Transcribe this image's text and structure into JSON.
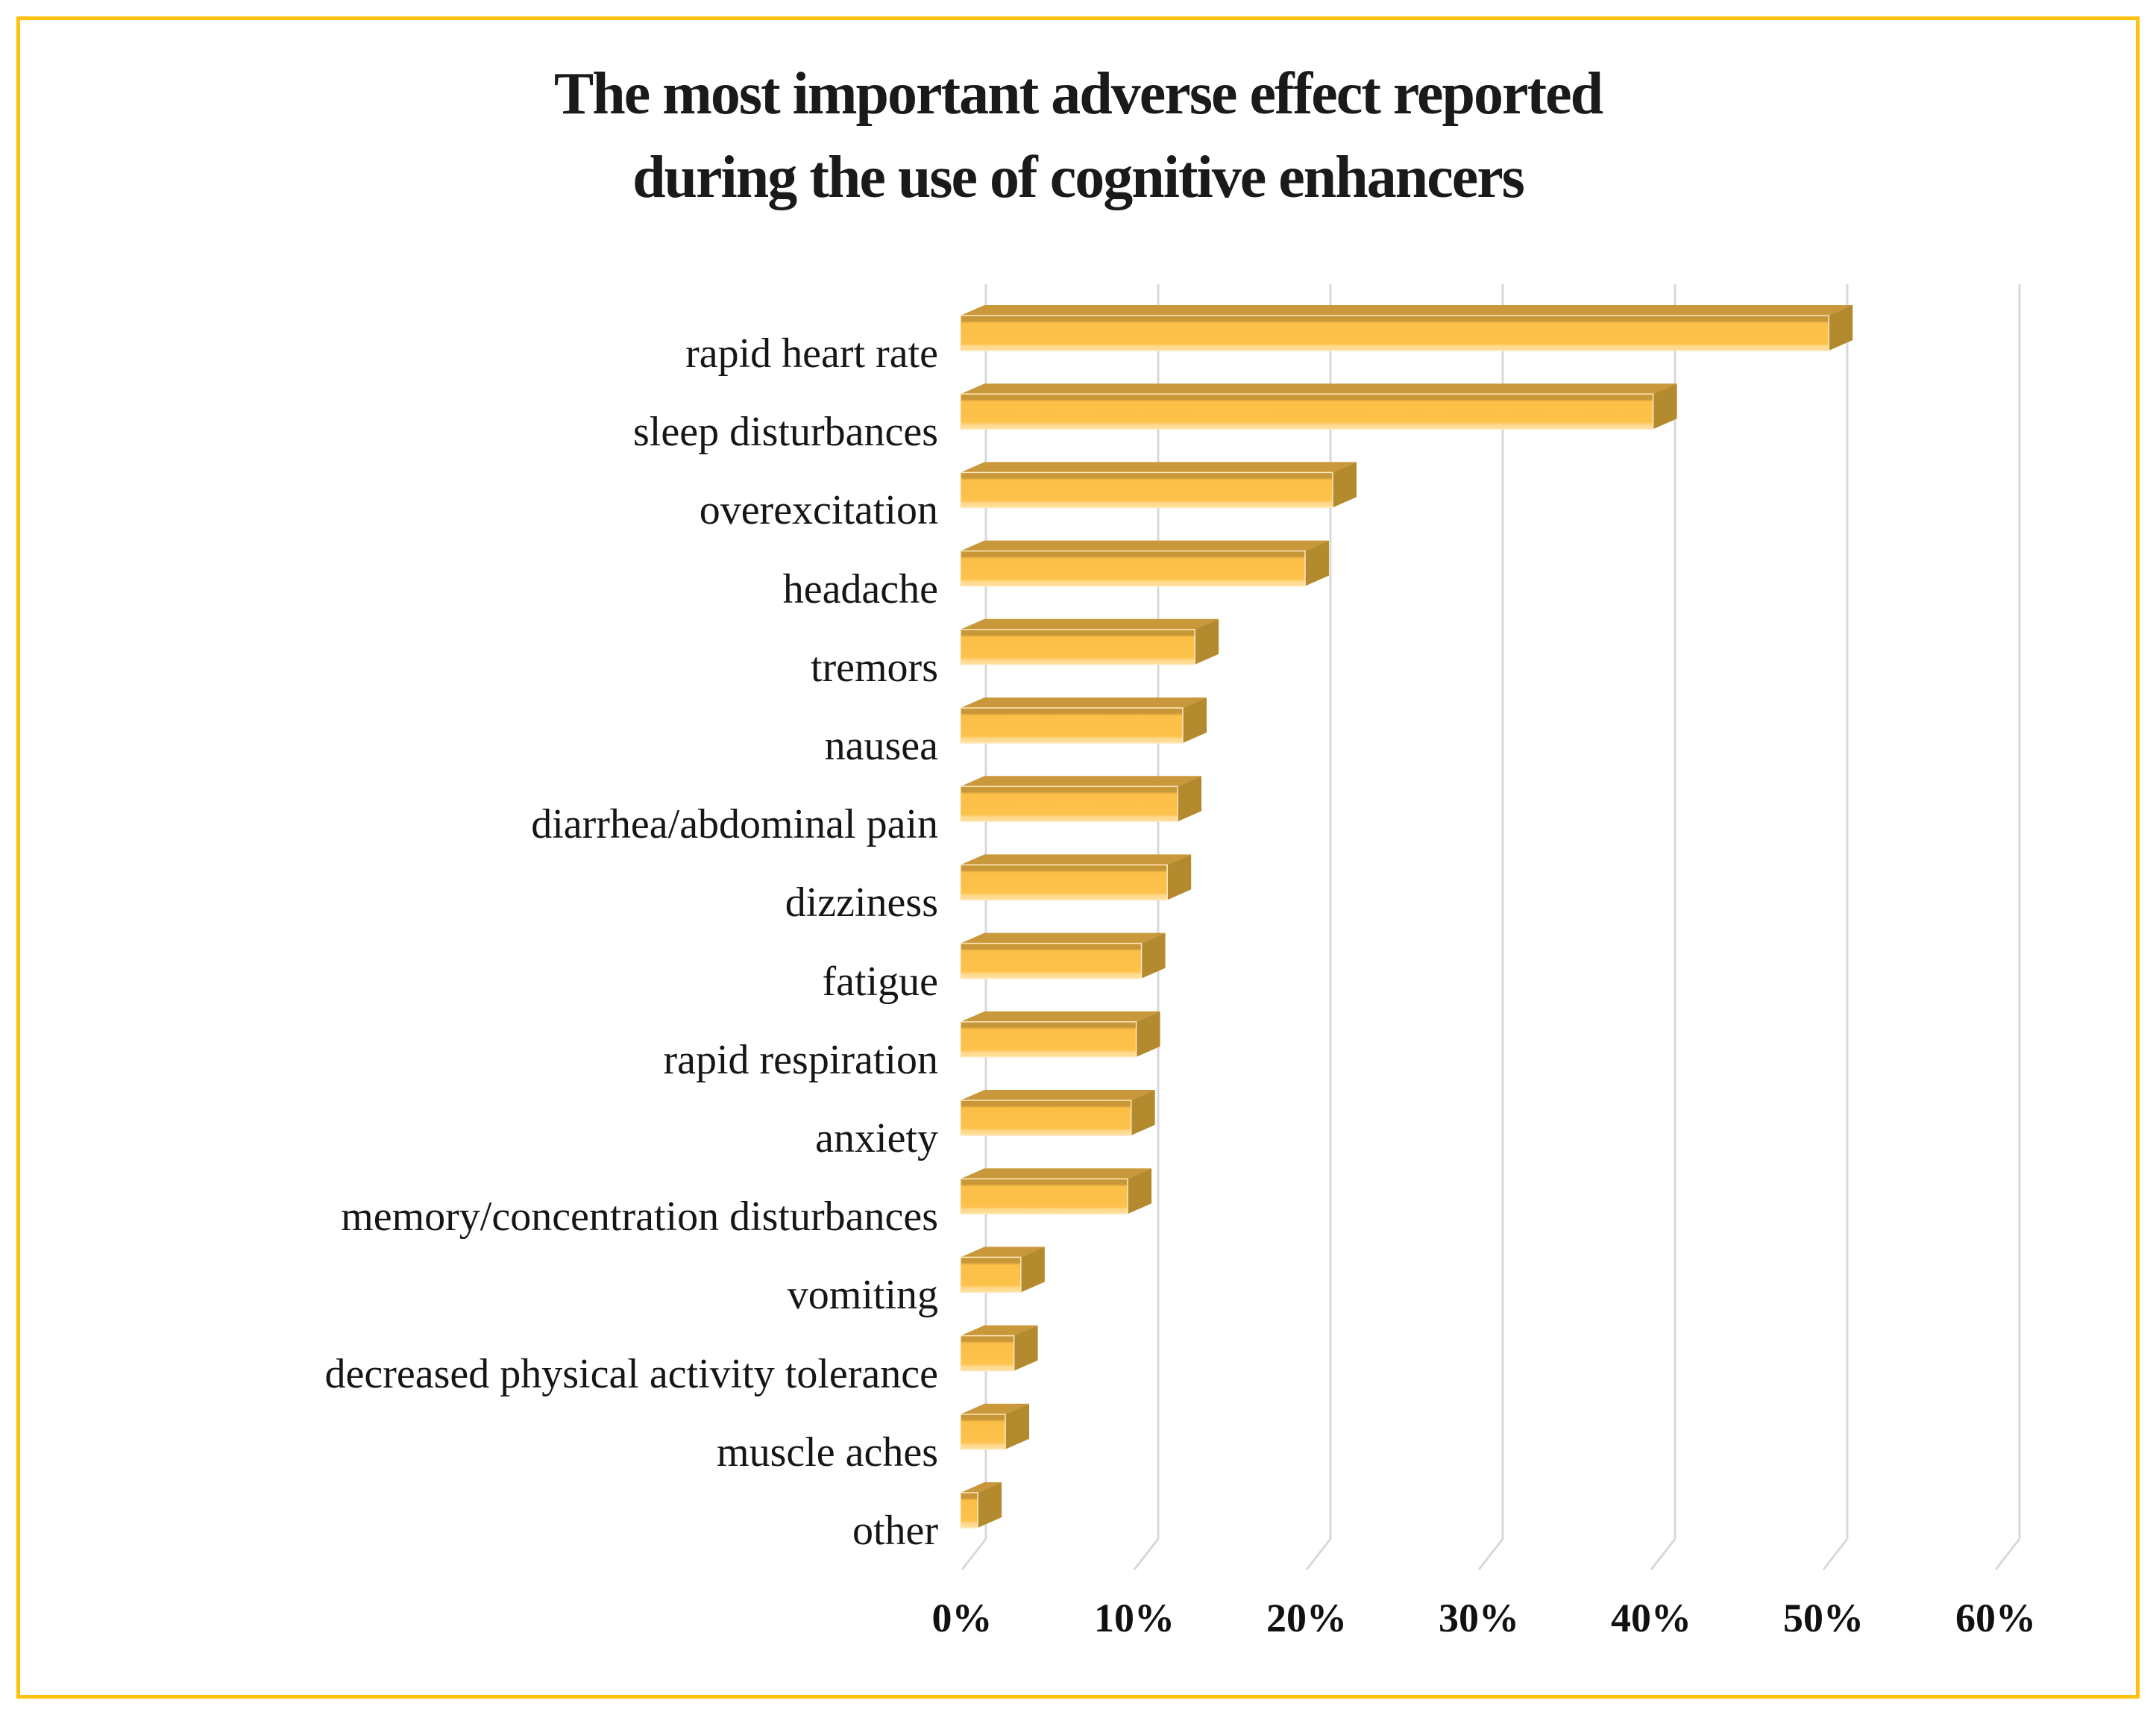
{
  "figure": {
    "title_line1": "The most important adverse effect reported",
    "title_line2": "during the use of cognitive enhancers",
    "border_color": "#FFC010",
    "background_color": "#FFFFFF"
  },
  "chart_data": {
    "type": "bar",
    "orientation": "horizontal",
    "style": "3d-excel",
    "title": "The most important adverse effect reported during the use of cognitive enhancers",
    "categories": [
      "rapid heart rate",
      "sleep disturbances",
      "overexcitation",
      "headache",
      "tremors",
      "nausea",
      "diarrhea/abdominal pain",
      "dizziness",
      "fatigue",
      "rapid respiration",
      "anxiety",
      "memory/concentration disturbances",
      "vomiting",
      "decreased physical activity tolerance",
      "muscle aches",
      "other"
    ],
    "values": [
      50.4,
      40.2,
      21.6,
      20.0,
      13.6,
      12.9,
      12.6,
      12.0,
      10.5,
      10.2,
      9.9,
      9.7,
      3.5,
      3.1,
      2.6,
      1.0
    ],
    "unit": "%",
    "xlabel": "",
    "ylabel": "",
    "xlim": [
      0,
      60
    ],
    "x_ticks": [
      "0%",
      "10%",
      "20%",
      "30%",
      "40%",
      "50%",
      "60%"
    ],
    "x_tick_values": [
      0,
      10,
      20,
      30,
      40,
      50,
      60
    ],
    "grid": "vertical",
    "legend": "none",
    "colors": {
      "bar_fill": "#FEC34B",
      "bar_fill_top_band": "#C79738",
      "bar_fill_bottom_band": "#FFDF9C",
      "bar_side_face": "#B48A2E",
      "bar_top_face": "#C9983B",
      "gridline": "#D8D8D8",
      "text": "#1A1A1A"
    }
  }
}
